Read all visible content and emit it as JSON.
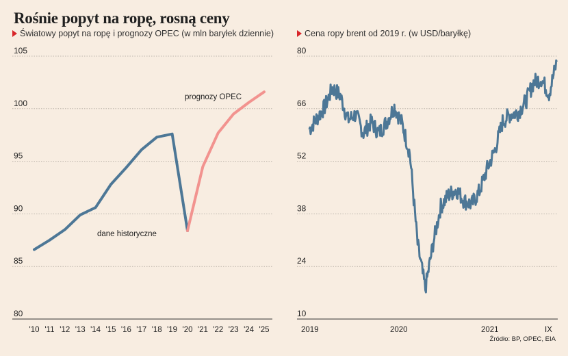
{
  "title": "Rośnie popyt na ropę, rosną ceny",
  "source": "Źródło: BP, OPEC, EIA",
  "chart_data": [
    {
      "type": "line",
      "subtitle": "Światowy popyt na ropę i prognozy OPEC (w mln baryłek dziennie)",
      "ylim": [
        80,
        105
      ],
      "yticks": [
        80,
        85,
        90,
        95,
        100,
        105
      ],
      "categories": [
        "'10",
        "'11",
        "'12",
        "'13",
        "'14",
        "'15",
        "'16",
        "'17",
        "'18",
        "'19",
        "'20",
        "'21",
        "'22",
        "'23",
        "'24",
        "'25"
      ],
      "grid": true,
      "series": [
        {
          "name": "dane historyczne",
          "color": "#4d7796",
          "x": [
            "'10",
            "'11",
            "'12",
            "'13",
            "'14",
            "'15",
            "'16",
            "'17",
            "'18",
            "'19",
            "'20"
          ],
          "values": [
            86.6,
            87.5,
            88.5,
            89.9,
            90.6,
            92.8,
            94.4,
            96.1,
            97.3,
            97.6,
            88.4
          ]
        },
        {
          "name": "prognozy OPEC",
          "color": "#f2938f",
          "x": [
            "'20",
            "'21",
            "'22",
            "'23",
            "'24",
            "'25"
          ],
          "values": [
            88.4,
            94.5,
            97.7,
            99.5,
            100.6,
            101.6
          ]
        }
      ]
    },
    {
      "type": "line",
      "subtitle": "Cena ropy brent od 2019 r. (w USD/baryłkę)",
      "ylim": [
        10,
        80
      ],
      "yticks": [
        10,
        24,
        38,
        52,
        66,
        80
      ],
      "xticks": [
        "2019",
        "2020",
        "2021",
        "IX"
      ],
      "grid": true,
      "series": [
        {
          "color": "#4d7796",
          "points": [
            [
              "2019-01",
              60.5
            ],
            [
              "2019-02",
              63.5
            ],
            [
              "2019-03",
              66.5
            ],
            [
              "2019-04",
              71.5
            ],
            [
              "2019-05",
              69.5
            ],
            [
              "2019-06",
              63.0
            ],
            [
              "2019-07",
              64.5
            ],
            [
              "2019-08",
              59.5
            ],
            [
              "2019-09",
              62.5
            ],
            [
              "2019-10",
              59.5
            ],
            [
              "2019-11",
              62.5
            ],
            [
              "2019-12",
              66.5
            ],
            [
              "2020-01",
              62.0
            ],
            [
              "2020-02",
              54.0
            ],
            [
              "2020-03",
              30.0
            ],
            [
              "2020-04",
              18.0
            ],
            [
              "2020-05",
              30.0
            ],
            [
              "2020-06",
              40.0
            ],
            [
              "2020-07",
              43.0
            ],
            [
              "2020-08",
              44.5
            ],
            [
              "2020-09",
              41.5
            ],
            [
              "2020-10",
              40.5
            ],
            [
              "2020-11",
              44.0
            ],
            [
              "2020-12",
              50.0
            ],
            [
              "2021-01",
              55.0
            ],
            [
              "2021-02",
              62.5
            ],
            [
              "2021-03",
              64.5
            ],
            [
              "2021-04",
              65.0
            ],
            [
              "2021-05",
              68.0
            ],
            [
              "2021-06",
              73.0
            ],
            [
              "2021-07",
              74.0
            ],
            [
              "2021-08",
              70.0
            ],
            [
              "2021-09",
              78.5
            ]
          ]
        }
      ]
    }
  ]
}
